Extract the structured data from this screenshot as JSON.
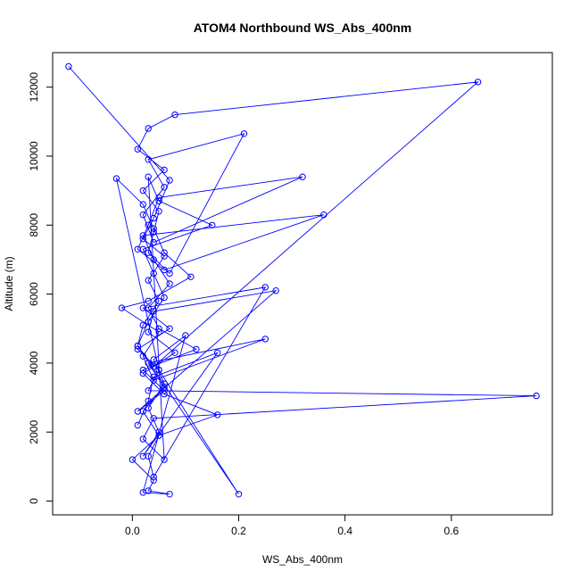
{
  "chart_data": {
    "type": "scatter",
    "title": "ATOM4 Northbound WS_Abs_400nm",
    "xlabel": "WS_Abs_400nm",
    "ylabel": "Altitude (m)",
    "xlim": [
      -0.15,
      0.79
    ],
    "ylim": [
      -400,
      13000
    ],
    "x_ticks": [
      0.0,
      0.2,
      0.4,
      0.6
    ],
    "x_tick_labels": [
      "0.0",
      "0.2",
      "0.4",
      "0.6"
    ],
    "y_ticks": [
      0,
      2000,
      4000,
      6000,
      8000,
      10000,
      12000
    ],
    "y_tick_labels": [
      "0",
      "2000",
      "4000",
      "6000",
      "8000",
      "10000",
      "12000"
    ],
    "grid": false,
    "legend": "none",
    "color": "#0000ff",
    "marker": "open-circle",
    "connect_points": true,
    "series": [
      {
        "x": [
          -0.12,
          0.07,
          0.04,
          0.02,
          0.06,
          0.03,
          0.05,
          0.02,
          0.01,
          0.04,
          0.65,
          0.08,
          0.03,
          0.01,
          0.06,
          0.02,
          0.05,
          0.04,
          0.03,
          0.07,
          0.21,
          0.03,
          0.06,
          0.02,
          0.04,
          0.32,
          0.05,
          0.03,
          0.01,
          0.06,
          0.36,
          0.02,
          0.04,
          0.07,
          0.03,
          0.05,
          0.12,
          0.02,
          0.06,
          0.01,
          0.27,
          0.04,
          0.03,
          0.08,
          0.02,
          0.06,
          0.16,
          0.05,
          0.03,
          0.04,
          0.25,
          0.02,
          0.07,
          0.01,
          0.05,
          0.03,
          0.76,
          0.04,
          0.02,
          0.06,
          0.03,
          0.05,
          0.15,
          0.02,
          0.04,
          0.06,
          0.03,
          0.01,
          0.2,
          0.05,
          -0.03,
          0.02,
          0.04,
          0.06,
          0.11,
          0.03,
          -0.02,
          0.05,
          0.02,
          0.04,
          0.25,
          0.03,
          0.06,
          0.02,
          0.05,
          0.0,
          0.04,
          0.03,
          0.07,
          0.02,
          0.1,
          0.04,
          0.06,
          0.03,
          0.05,
          0.02,
          0.16,
          0.04,
          0.03,
          0.01
        ],
        "y": [
          12600,
          9300,
          8200,
          7600,
          7100,
          6400,
          5800,
          5100,
          4500,
          3900,
          12150,
          11200,
          10800,
          10200,
          9600,
          9000,
          8400,
          7800,
          7200,
          6600,
          10650,
          9900,
          9100,
          8300,
          7500,
          9400,
          8800,
          8000,
          7300,
          6700,
          8300,
          7700,
          7000,
          6300,
          5600,
          5000,
          4400,
          3800,
          3200,
          2600,
          6100,
          5500,
          4900,
          4300,
          3700,
          3100,
          2500,
          1900,
          1300,
          700,
          6200,
          5600,
          5000,
          4400,
          3800,
          3200,
          3050,
          2400,
          1800,
          1200,
          9400,
          8700,
          8000,
          7300,
          6600,
          5900,
          5200,
          4500,
          200,
          3800,
          9350,
          8600,
          7900,
          7200,
          6500,
          5800,
          5600,
          4900,
          4200,
          3500,
          4700,
          4000,
          3300,
          2600,
          1900,
          1200,
          600,
          300,
          200,
          250,
          4800,
          4100,
          3400,
          2700,
          2000,
          1300,
          4300,
          3600,
          2900,
          2200
        ]
      }
    ]
  }
}
